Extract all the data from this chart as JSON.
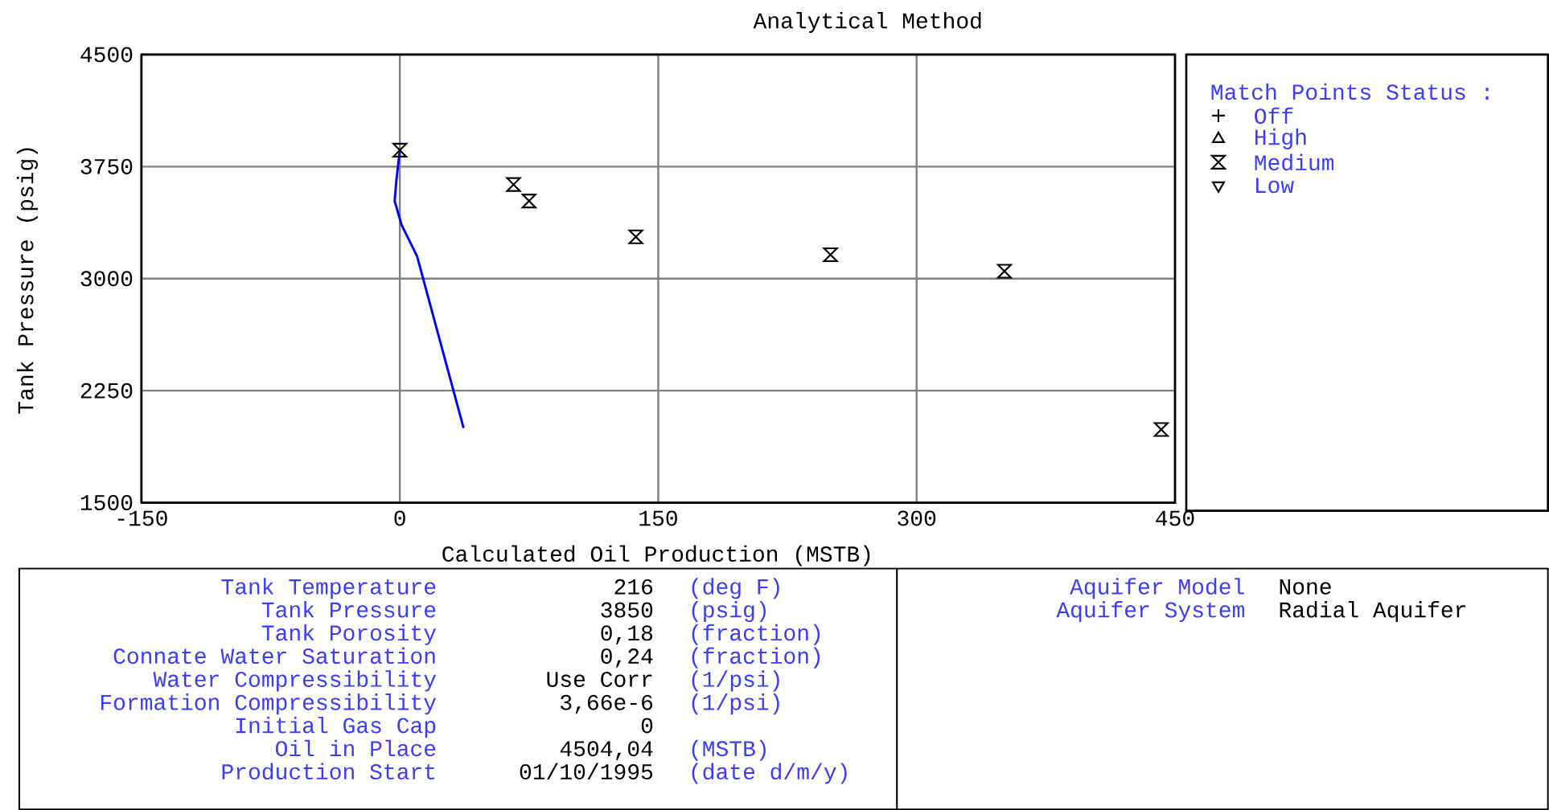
{
  "chart_data": {
    "type": "scatter",
    "title": "Analytical Method",
    "xlabel": "Calculated Oil Production (MSTB)",
    "ylabel": "Tank Pressure (psig)",
    "legend_title": "Match Points Status :",
    "xlim": [
      -150,
      450
    ],
    "ylim": [
      1500,
      4500
    ],
    "xticks": [
      -150,
      0,
      150,
      300,
      450
    ],
    "yticks": [
      1500,
      2250,
      3000,
      3750,
      4500
    ],
    "grid": true,
    "legend": "right",
    "series": [
      {
        "type": "line",
        "color": "#0000ff",
        "marker": "none",
        "x": [
          0,
          -2,
          -3,
          1,
          10,
          37
        ],
        "values": [
          3860,
          3660,
          3520,
          3360,
          3150,
          2000
        ]
      },
      {
        "name": "Off",
        "color": "#000000",
        "marker": "cross"
      },
      {
        "name": "High",
        "color": "#000000",
        "marker": "triangle"
      },
      {
        "name": "Medium",
        "color": "#000000",
        "marker": "diamond",
        "x": [
          0,
          66,
          75,
          137,
          250,
          351,
          442
        ],
        "values": [
          3860,
          3630,
          3520,
          3280,
          3160,
          3050,
          1990
        ]
      },
      {
        "name": "Low",
        "color": "#000000",
        "marker": "triangle-down"
      }
    ],
    "annotations": [
      "Tank Temperature",
      "Tank Pressure",
      "Tank Porosity",
      "Connate Water Saturation",
      "Water Compressibility",
      "Formation Compressibility",
      "Initial Gas Cap",
      "Oil in Place",
      "Production Start",
      "216",
      "3850",
      "0,18",
      "0,24",
      "Use Corr",
      "3,66e-6",
      "0",
      "4504,04",
      "01/10/1995",
      "(deg F)",
      "(psig)",
      "(fraction)",
      "(fraction)",
      "(1/psi)",
      "(1/psi)",
      "(MSTB)",
      "(date d/m/y)",
      "Aquifer Model",
      "Aquifer System",
      "None",
      "Radial Aquifer"
    ]
  }
}
